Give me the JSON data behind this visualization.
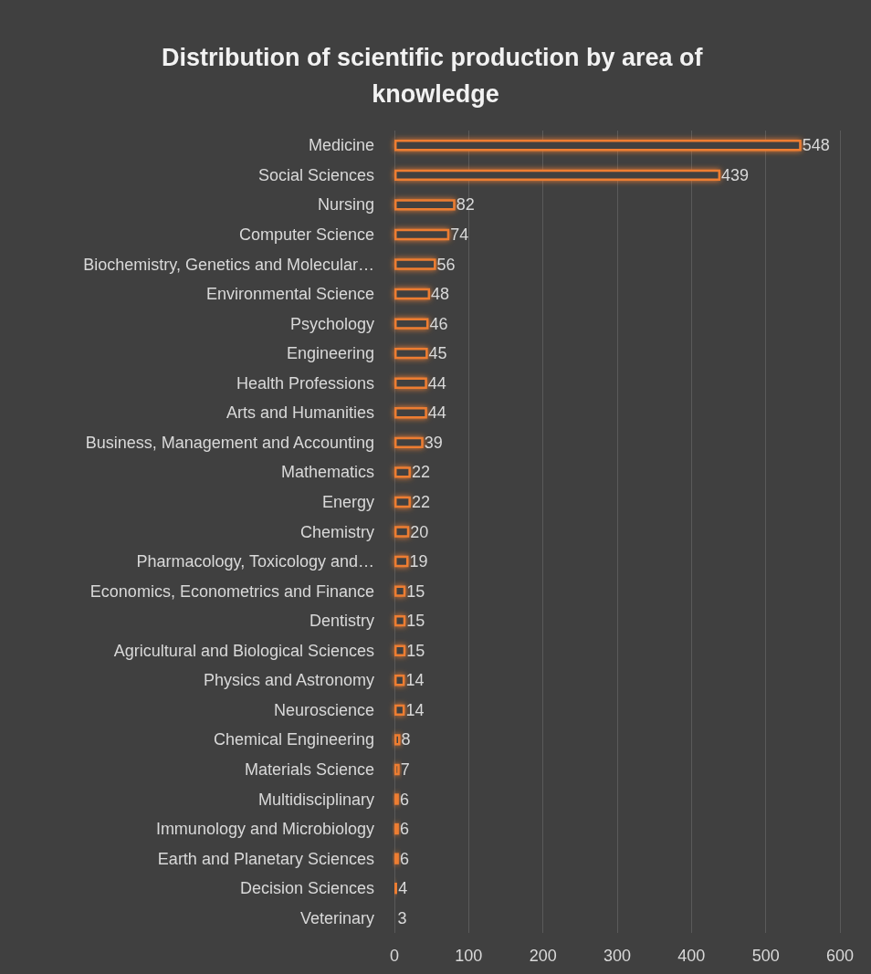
{
  "chart_data": {
    "type": "bar",
    "orientation": "horizontal",
    "title": "Distribution of scientific production by area of knowledge",
    "categories": [
      "Medicine",
      "Social Sciences",
      "Nursing",
      "Computer Science",
      "Biochemistry, Genetics and Molecular…",
      "Environmental Science",
      "Psychology",
      "Engineering",
      "Health Professions",
      "Arts and Humanities",
      "Business, Management and Accounting",
      "Mathematics",
      "Energy",
      "Chemistry",
      "Pharmacology, Toxicology and…",
      "Economics, Econometrics and Finance",
      "Dentistry",
      "Agricultural and Biological Sciences",
      "Physics and Astronomy",
      "Neuroscience",
      "Chemical Engineering",
      "Materials Science",
      "Multidisciplinary",
      "Immunology and Microbiology",
      "Earth and Planetary Sciences",
      "Decision Sciences",
      "Veterinary"
    ],
    "values": [
      548,
      439,
      82,
      74,
      56,
      48,
      46,
      45,
      44,
      44,
      39,
      22,
      22,
      20,
      19,
      15,
      15,
      15,
      14,
      14,
      8,
      7,
      6,
      6,
      6,
      4,
      3
    ],
    "color": "#ed7d31",
    "xlim": [
      0,
      600
    ],
    "xticks": [
      0,
      100,
      200,
      300,
      400,
      500,
      600
    ],
    "grid": "x",
    "data_labels": true
  }
}
